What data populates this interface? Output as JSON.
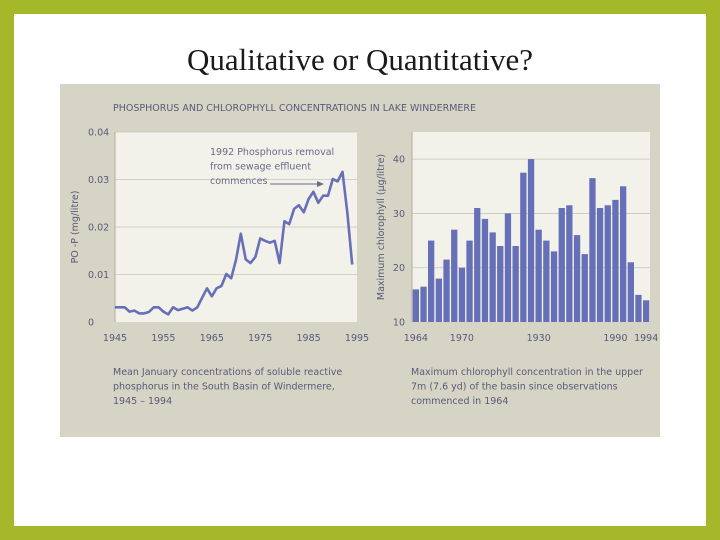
{
  "slide": {
    "title": "Qualitative or Quantitative?"
  },
  "colors": {
    "border": "#a4b829",
    "figure_bg": "#d6d4c4",
    "plot_bg": "#f2f1ea",
    "series": "#6670b8",
    "text": "#5a5a7a"
  },
  "figure": {
    "header": "PHOSPHORUS AND CHLOROPHYLL CONCENTRATIONS IN LAKE WINDERMERE"
  },
  "chart_data": [
    {
      "type": "line",
      "title": "",
      "ylabel": "PO -P (mg/litre)",
      "ylim": [
        0,
        0.04
      ],
      "xlim": [
        1945,
        1995
      ],
      "yticks": [
        "0",
        "0.01",
        "0.02",
        "0.03",
        "0.04"
      ],
      "xticks": [
        "1945",
        "1955",
        "1965",
        "1975",
        "1985",
        "1995"
      ],
      "annotation": [
        "1992 Phosphorus removal",
        "from sewage effluent",
        "commences"
      ],
      "caption": [
        "Mean January concentrations of soluble reactive",
        "phosphorus in the South Basin of Windermere,",
        "1945 – 1994"
      ],
      "x": [
        1945,
        1946,
        1947,
        1948,
        1949,
        1950,
        1951,
        1952,
        1953,
        1954,
        1955,
        1956,
        1957,
        1958,
        1959,
        1960,
        1961,
        1962,
        1963,
        1964,
        1965,
        1966,
        1967,
        1968,
        1969,
        1970,
        1971,
        1972,
        1973,
        1974,
        1975,
        1976,
        1977,
        1978,
        1979,
        1980,
        1981,
        1982,
        1983,
        1984,
        1985,
        1986,
        1987,
        1988,
        1989,
        1990,
        1991,
        1992,
        1993,
        1994
      ],
      "y": [
        0.0031,
        0.0031,
        0.0031,
        0.0022,
        0.0024,
        0.0018,
        0.0018,
        0.0021,
        0.0031,
        0.0031,
        0.0022,
        0.0016,
        0.0031,
        0.0025,
        0.0028,
        0.0031,
        0.0024,
        0.0031,
        0.0051,
        0.0071,
        0.0054,
        0.0071,
        0.0076,
        0.0101,
        0.0092,
        0.0131,
        0.0186,
        0.0132,
        0.0124,
        0.0137,
        0.0176,
        0.0171,
        0.0167,
        0.0171,
        0.0124,
        0.0212,
        0.0206,
        0.0238,
        0.0246,
        0.0231,
        0.0259,
        0.0274,
        0.0251,
        0.0266,
        0.0266,
        0.0301,
        0.0296,
        0.0316,
        0.0231,
        0.0121
      ]
    },
    {
      "type": "bar",
      "title": "",
      "ylabel": "Maximum chlorophyll (µg/litre)",
      "ylim": [
        10,
        45
      ],
      "xlim": [
        1964,
        1994
      ],
      "yticks": [
        "10",
        "20",
        "30",
        "40"
      ],
      "xticks": [
        "1964",
        "1970",
        "1930",
        "1990",
        "1994"
      ],
      "caption": [
        "Maximum chlorophyll concentration in the upper",
        "7m (7.6 yd) of the basin since observations",
        "commenced in 1964"
      ],
      "categories": [
        1964,
        1965,
        1966,
        1967,
        1968,
        1969,
        1970,
        1971,
        1972,
        1973,
        1974,
        1975,
        1976,
        1977,
        1978,
        1979,
        1980,
        1981,
        1982,
        1983,
        1984,
        1985,
        1986,
        1987,
        1988,
        1989,
        1990,
        1991,
        1992,
        1993,
        1994
      ],
      "values": [
        16,
        16.5,
        25,
        18,
        21.5,
        27,
        20,
        25,
        31,
        29,
        26.5,
        24,
        30,
        24,
        37.5,
        40,
        27,
        25,
        23,
        31,
        31.5,
        26,
        22.5,
        36.5,
        31,
        31.5,
        32.5,
        35,
        21,
        15,
        14
      ]
    }
  ]
}
